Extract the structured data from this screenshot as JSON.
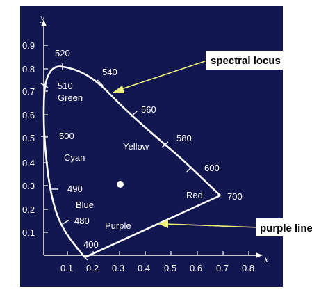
{
  "diagram": {
    "axes": {
      "x_label": "x",
      "y_label": "y",
      "x_ticks": [
        "0.1",
        "0.2",
        "0.3",
        "0.4",
        "0.5",
        "0.6",
        "0.7",
        "0.8"
      ],
      "y_ticks": [
        "0.1",
        "0.2",
        "0.3",
        "0.4",
        "0.5",
        "0.6",
        "0.7",
        "0.8",
        "0.9"
      ]
    },
    "wavelengths": {
      "w400": "400",
      "w480": "480",
      "w490": "490",
      "w500": "500",
      "w510": "510",
      "w520": "520",
      "w540": "540",
      "w560": "560",
      "w580": "580",
      "w600": "600",
      "w700": "700"
    },
    "regions": {
      "green": "Green",
      "cyan": "Cyan",
      "blue": "Blue",
      "yellow": "Yellow",
      "red": "Red",
      "purple": "Purple"
    },
    "callouts": {
      "spectral_locus": "spectral locus",
      "purple_line": "purple line"
    },
    "colors": {
      "background": "#12184f",
      "arrow": "#eef27a",
      "white_point": "#ffffff"
    }
  }
}
